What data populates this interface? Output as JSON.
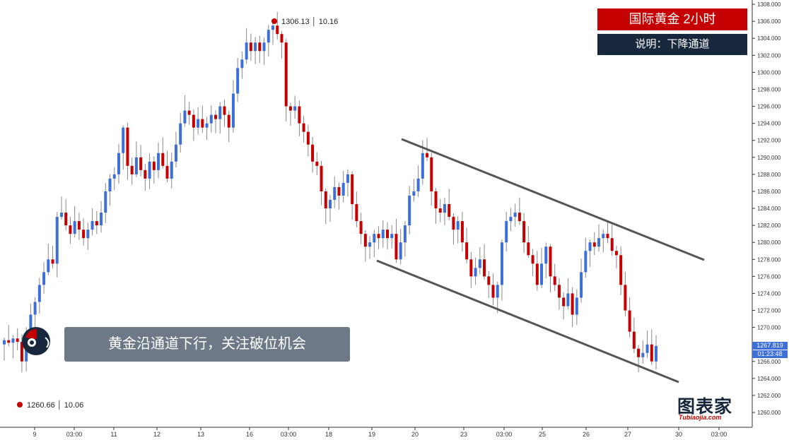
{
  "header": {
    "title": "国际黄金 2小时",
    "subtitle": "说明：下降通道"
  },
  "banner": {
    "text": "黄金沿通道下行，关注破位机会"
  },
  "price_tags": {
    "last_price": "1267.819",
    "countdown": "01:23:48"
  },
  "annotations": {
    "high": "1306.13 │ 10.16",
    "low": "1260.66 │ 10.06"
  },
  "logo": {
    "name": "图表家",
    "domain": "Tubiaojia.com"
  },
  "colors": {
    "up": "#3d6fd6",
    "down": "#c40000",
    "channel": "#555555",
    "title_bg": "#c40000",
    "subtitle_bg": "#17283c",
    "banner_bg": "#6d7986"
  },
  "chart_data": {
    "type": "candlestick",
    "title": "国际黄金 2小时",
    "ylim": [
      1258,
      1309
    ],
    "y_ticks": [
      "1260.000",
      "1262.000",
      "1264.000",
      "1266.000",
      "1268.000",
      "1270.000",
      "1272.000",
      "1274.000",
      "1276.000",
      "1278.000",
      "1280.000",
      "1282.000",
      "1284.000",
      "1286.000",
      "1288.000",
      "1290.000",
      "1292.000",
      "1294.000",
      "1296.000",
      "1298.000",
      "1300.000",
      "1302.000",
      "1304.000",
      "1306.000",
      "1308.000"
    ],
    "x_ticks": [
      "9",
      "03:00",
      "11",
      "12",
      "13",
      "16",
      "03:00",
      "18",
      "19",
      "20",
      "23",
      "03:00",
      "25",
      "26",
      "27",
      "30",
      "03:00"
    ],
    "grid": false,
    "high_point": {
      "price": 1306.13,
      "date": "10.16"
    },
    "low_point": {
      "price": 1260.66,
      "date": "10.06"
    },
    "last_price": 1267.819,
    "closes": [
      1268.5,
      1268.2,
      1268.7,
      1268.3,
      1266.0,
      1269.0,
      1271.5,
      1273.0,
      1275.0,
      1276.5,
      1278.0,
      1277.5,
      1283.0,
      1283.5,
      1282.0,
      1281.0,
      1282.5,
      1281.5,
      1280.5,
      1281.5,
      1282.5,
      1282.0,
      1283.5,
      1286.0,
      1287.5,
      1288.0,
      1290.5,
      1293.5,
      1289.0,
      1288.0,
      1290.0,
      1288.5,
      1287.5,
      1289.5,
      1288.5,
      1290.5,
      1289.0,
      1287.5,
      1289.5,
      1291.5,
      1294.0,
      1295.5,
      1295.0,
      1293.5,
      1294.5,
      1293.5,
      1294.0,
      1295.0,
      1294.5,
      1296.0,
      1295.0,
      1293.5,
      1297.5,
      1300.5,
      1301.5,
      1303.5,
      1302.5,
      1303.5,
      1302.5,
      1303.5,
      1305.0,
      1305.5,
      1304.5,
      1303.5,
      1296.0,
      1295.5,
      1296.0,
      1294.0,
      1293.0,
      1291.5,
      1289.5,
      1289.0,
      1286.0,
      1284.0,
      1285.0,
      1286.5,
      1285.5,
      1287.0,
      1288.0,
      1284.5,
      1282.5,
      1281.0,
      1279.5,
      1280.0,
      1281.0,
      1280.5,
      1281.5,
      1280.5,
      1281.0,
      1278.0,
      1280.0,
      1282.0,
      1285.5,
      1286.0,
      1287.5,
      1290.5,
      1290.0,
      1286.0,
      1284.0,
      1283.5,
      1284.5,
      1283.0,
      1281.5,
      1282.5,
      1280.0,
      1278.0,
      1276.0,
      1277.0,
      1278.0,
      1276.0,
      1275.0,
      1273.5,
      1275.0,
      1280.0,
      1282.5,
      1283.0,
      1283.5,
      1282.5,
      1280.0,
      1278.5,
      1277.5,
      1275.0,
      1277.5,
      1279.5,
      1276.0,
      1275.0,
      1273.5,
      1272.5,
      1274.0,
      1271.5,
      1273.5,
      1276.5,
      1279.0,
      1280.0,
      1279.5,
      1280.5,
      1281.0,
      1280.5,
      1279.0,
      1278.5,
      1275.0,
      1272.0,
      1269.5,
      1267.5,
      1266.5,
      1267.0,
      1268.0,
      1266.0,
      1267.819
    ]
  }
}
